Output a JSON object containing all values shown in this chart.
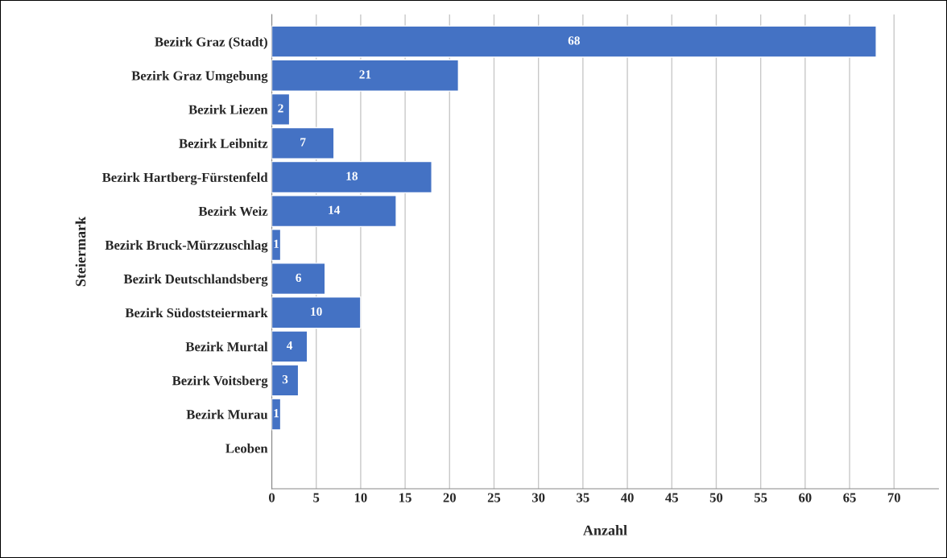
{
  "chart_data": {
    "type": "bar",
    "orientation": "horizontal",
    "xlabel": "Anzahl",
    "ylabel": "Steiermark",
    "categories": [
      "Bezirk Graz (Stadt)",
      "Bezirk Graz Umgebung",
      "Bezirk Liezen",
      "Bezirk Leibnitz",
      "Bezirk Hartberg-Fürstenfeld",
      "Bezirk Weiz",
      "Bezirk Bruck-Mürzzuschlag",
      "Bezirk Deutschlandsberg",
      "Bezirk Südoststeiermark",
      "Bezirk Murtal",
      "Bezirk Voitsberg",
      "Bezirk Murau",
      "Leoben"
    ],
    "values": [
      68,
      21,
      2,
      7,
      18,
      14,
      1,
      6,
      10,
      4,
      3,
      1,
      null
    ],
    "color": "#4472c4",
    "xlim": [
      0,
      75
    ],
    "xticks": [
      0,
      5,
      10,
      15,
      20,
      25,
      30,
      35,
      40,
      45,
      50,
      55,
      60,
      65,
      70
    ],
    "grid": "x",
    "data_labels": true,
    "legend": false
  }
}
